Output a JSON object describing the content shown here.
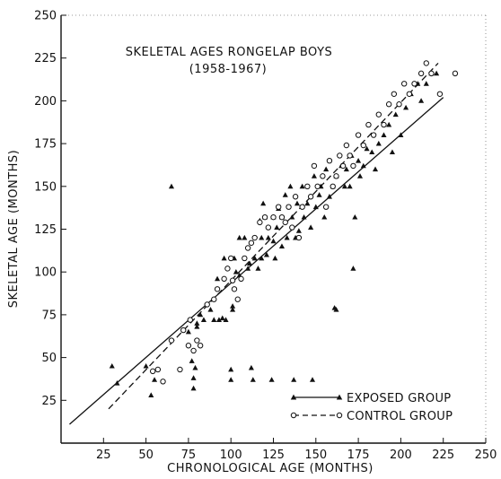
{
  "chart_data": {
    "type": "scatter",
    "title": "SKELETAL AGES RONGELAP BOYS",
    "subtitle": "(1958-1967)",
    "xlabel": "CHRONOLOGICAL AGE (MONTHS)",
    "ylabel": "SKELETAL AGE (MONTHS)",
    "xlim": [
      0,
      250
    ],
    "ylim": [
      0,
      250
    ],
    "xticks": [
      "25",
      "50",
      "75",
      "100",
      "125",
      "150",
      "175",
      "200",
      "225",
      "250"
    ],
    "yticks": [
      "25",
      "50",
      "75",
      "100",
      "125",
      "150",
      "175",
      "200",
      "225",
      "250"
    ],
    "grid": false,
    "legend_position": "bottom-right",
    "series": [
      {
        "name": "EXPOSED GROUP",
        "marker": "filled-triangle",
        "line": "solid",
        "fit_line": [
          [
            5,
            11
          ],
          [
            225,
            202
          ]
        ],
        "points": [
          [
            30,
            45
          ],
          [
            33,
            35
          ],
          [
            50,
            45
          ],
          [
            53,
            28
          ],
          [
            55,
            37
          ],
          [
            65,
            150
          ],
          [
            75,
            65
          ],
          [
            77,
            48
          ],
          [
            78,
            38
          ],
          [
            78,
            32
          ],
          [
            79,
            44
          ],
          [
            80,
            70
          ],
          [
            80,
            68
          ],
          [
            82,
            75
          ],
          [
            84,
            72
          ],
          [
            88,
            78
          ],
          [
            90,
            72
          ],
          [
            92,
            96
          ],
          [
            93,
            72
          ],
          [
            95,
            73
          ],
          [
            96,
            108
          ],
          [
            97,
            72
          ],
          [
            100,
            43
          ],
          [
            100,
            37
          ],
          [
            101,
            80
          ],
          [
            101,
            78
          ],
          [
            102,
            108
          ],
          [
            103,
            100
          ],
          [
            105,
            98
          ],
          [
            105,
            120
          ],
          [
            108,
            120
          ],
          [
            110,
            102
          ],
          [
            111,
            105
          ],
          [
            112,
            44
          ],
          [
            113,
            37
          ],
          [
            114,
            108
          ],
          [
            116,
            102
          ],
          [
            117,
            130
          ],
          [
            118,
            108
          ],
          [
            118,
            120
          ],
          [
            119,
            140
          ],
          [
            120,
            132
          ],
          [
            121,
            110
          ],
          [
            122,
            120
          ],
          [
            124,
            37
          ],
          [
            125,
            132
          ],
          [
            125,
            118
          ],
          [
            126,
            108
          ],
          [
            127,
            126
          ],
          [
            128,
            137
          ],
          [
            130,
            132
          ],
          [
            130,
            115
          ],
          [
            132,
            145
          ],
          [
            133,
            120
          ],
          [
            135,
            150
          ],
          [
            136,
            132
          ],
          [
            137,
            37
          ],
          [
            138,
            120
          ],
          [
            139,
            140
          ],
          [
            140,
            124
          ],
          [
            142,
            150
          ],
          [
            143,
            132
          ],
          [
            145,
            140
          ],
          [
            147,
            126
          ],
          [
            148,
            37
          ],
          [
            149,
            156
          ],
          [
            150,
            138
          ],
          [
            152,
            145
          ],
          [
            153,
            150
          ],
          [
            155,
            132
          ],
          [
            156,
            160
          ],
          [
            158,
            144
          ],
          [
            160,
            150
          ],
          [
            161,
            79
          ],
          [
            162,
            78
          ],
          [
            162,
            156
          ],
          [
            165,
            162
          ],
          [
            167,
            150
          ],
          [
            168,
            160
          ],
          [
            170,
            150
          ],
          [
            171,
            168
          ],
          [
            172,
            102
          ],
          [
            173,
            132
          ],
          [
            175,
            165
          ],
          [
            176,
            156
          ],
          [
            178,
            162
          ],
          [
            180,
            172
          ],
          [
            183,
            170
          ],
          [
            185,
            160
          ],
          [
            187,
            175
          ],
          [
            190,
            180
          ],
          [
            193,
            186
          ],
          [
            195,
            170
          ],
          [
            197,
            192
          ],
          [
            200,
            180
          ],
          [
            203,
            196
          ],
          [
            206,
            204
          ],
          [
            210,
            210
          ],
          [
            212,
            200
          ],
          [
            215,
            210
          ],
          [
            218,
            216
          ],
          [
            221,
            216
          ]
        ]
      },
      {
        "name": "CONTROL GROUP",
        "marker": "open-circle",
        "line": "dashed",
        "fit_line": [
          [
            28,
            20
          ],
          [
            222,
            222
          ]
        ],
        "points": [
          [
            54,
            42
          ],
          [
            57,
            43
          ],
          [
            60,
            36
          ],
          [
            65,
            60
          ],
          [
            70,
            43
          ],
          [
            72,
            66
          ],
          [
            75,
            57
          ],
          [
            76,
            72
          ],
          [
            78,
            54
          ],
          [
            80,
            60
          ],
          [
            82,
            57
          ],
          [
            86,
            81
          ],
          [
            90,
            84
          ],
          [
            92,
            90
          ],
          [
            96,
            96
          ],
          [
            98,
            102
          ],
          [
            100,
            108
          ],
          [
            101,
            95
          ],
          [
            102,
            90
          ],
          [
            104,
            84
          ],
          [
            106,
            96
          ],
          [
            108,
            108
          ],
          [
            110,
            114
          ],
          [
            112,
            117
          ],
          [
            114,
            120
          ],
          [
            117,
            129
          ],
          [
            120,
            132
          ],
          [
            122,
            126
          ],
          [
            125,
            132
          ],
          [
            128,
            138
          ],
          [
            130,
            132
          ],
          [
            132,
            129
          ],
          [
            134,
            138
          ],
          [
            136,
            126
          ],
          [
            138,
            144
          ],
          [
            140,
            120
          ],
          [
            142,
            138
          ],
          [
            145,
            150
          ],
          [
            147,
            144
          ],
          [
            149,
            162
          ],
          [
            151,
            150
          ],
          [
            154,
            156
          ],
          [
            156,
            138
          ],
          [
            158,
            165
          ],
          [
            160,
            150
          ],
          [
            162,
            156
          ],
          [
            164,
            168
          ],
          [
            166,
            162
          ],
          [
            168,
            174
          ],
          [
            170,
            168
          ],
          [
            172,
            162
          ],
          [
            175,
            180
          ],
          [
            178,
            174
          ],
          [
            181,
            186
          ],
          [
            184,
            180
          ],
          [
            187,
            192
          ],
          [
            190,
            186
          ],
          [
            193,
            198
          ],
          [
            196,
            204
          ],
          [
            199,
            198
          ],
          [
            202,
            210
          ],
          [
            205,
            204
          ],
          [
            208,
            210
          ],
          [
            212,
            216
          ],
          [
            215,
            222
          ],
          [
            218,
            216
          ],
          [
            223,
            204
          ],
          [
            232,
            216
          ]
        ]
      }
    ]
  }
}
